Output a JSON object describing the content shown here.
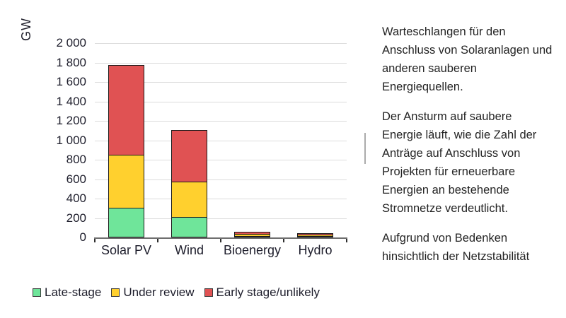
{
  "chart_data": {
    "type": "bar",
    "stacked": true,
    "unit_label": "GW",
    "categories": [
      "Solar PV",
      "Wind",
      "Bioenergy",
      "Hydro"
    ],
    "series": [
      {
        "name": "Late-stage",
        "color": "#6FE59A",
        "values": [
          295,
          205,
          5,
          2
        ]
      },
      {
        "name": "Under review",
        "color": "#FFD02E",
        "values": [
          550,
          360,
          30,
          10
        ]
      },
      {
        "name": "Early stage/unlikely",
        "color": "#E05253",
        "values": [
          930,
          540,
          20,
          33
        ]
      }
    ],
    "totals": [
      1775,
      1105,
      55,
      45
    ],
    "ylim": [
      0,
      2000
    ],
    "ytick_interval": 200,
    "ytick_labels": [
      "0",
      "200",
      "400",
      "600",
      "800",
      "1 000",
      "1 200",
      "1 400",
      "1 600",
      "1 800",
      "2 000"
    ],
    "grid": true,
    "legend_position": "bottom"
  },
  "text": {
    "paragraphs": [
      "Warteschlangen für den\nAnschluss von Solaranlagen und\nanderen sauberen\nEnergiequellen.",
      "Der Ansturm auf saubere\nEnergie läuft, wie die Zahl der\nAnträge auf Anschluss von\nProjekten für erneuerbare\nEnergien an bestehende\nStromnetze verdeutlicht.",
      "Aufgrund von Bedenken\nhinsichtlich der Netzstabilität"
    ]
  },
  "colors": {
    "late_stage": "#6FE59A",
    "under_review": "#FFD02E",
    "early_stage": "#E05253",
    "gridline": "#dcdcdc",
    "axis": "#6f6f6f"
  }
}
